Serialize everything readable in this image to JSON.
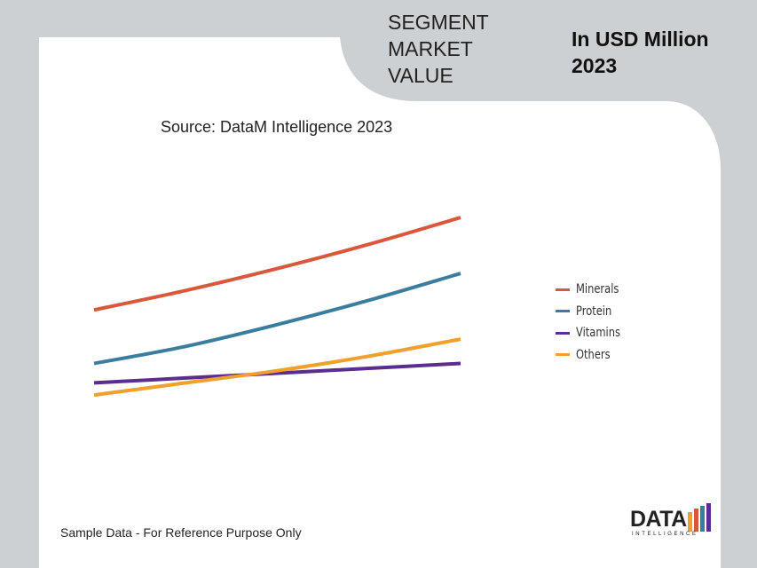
{
  "header": {
    "title_lines": [
      "SEGMENT",
      "MARKET",
      "VALUE"
    ],
    "unit_lines": [
      "In USD Million",
      "2023"
    ]
  },
  "source": "Source: DataM Intelligence 2023",
  "footnote": "Sample Data - For Reference Purpose Only",
  "logo": {
    "text": "DATA",
    "subtext": "INTELLIGENCE"
  },
  "colors": {
    "background": "#cdd0d2",
    "panel": "#ffffff",
    "minerals": "#d9583b",
    "protein": "#3a7d9c",
    "vitamins": "#5b2d8e",
    "others": "#f0a02c",
    "logo_bars": [
      "#f0a02c",
      "#d9583b",
      "#3a7d9c",
      "#5b2d8e"
    ]
  },
  "chart_data": {
    "type": "line",
    "x": [
      0,
      1,
      2,
      3,
      4
    ],
    "ylim": [
      0,
      100
    ],
    "grid": false,
    "legend_position": "right",
    "series": [
      {
        "name": "Minerals",
        "color": "#d9583b",
        "values": [
          47,
          55,
          64,
          74,
          85
        ]
      },
      {
        "name": "Protein",
        "color": "#3a7d9c",
        "values": [
          25,
          32,
          41,
          51,
          62
        ]
      },
      {
        "name": "Vitamins",
        "color": "#5b2d8e",
        "values": [
          17,
          19,
          21,
          23,
          25
        ]
      },
      {
        "name": "Others",
        "color": "#f0a02c",
        "values": [
          12,
          17,
          22,
          28,
          35
        ]
      }
    ]
  }
}
